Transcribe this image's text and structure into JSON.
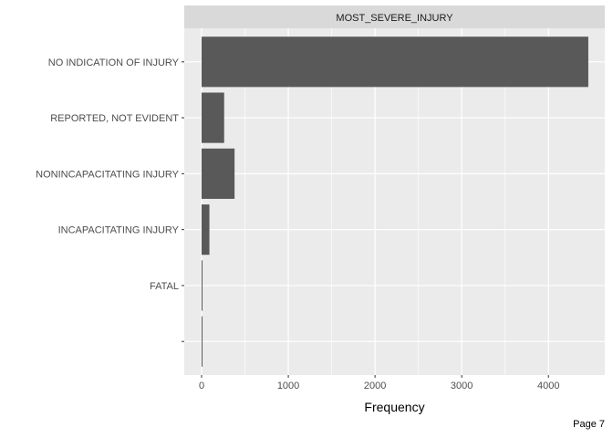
{
  "chart_data": {
    "type": "bar",
    "orientation": "horizontal",
    "facet_label": "MOST_SEVERE_INJURY",
    "categories": [
      "NO INDICATION OF INJURY",
      "REPORTED, NOT EVIDENT",
      "NONINCAPACITATING INJURY",
      "INCAPACITATING INJURY",
      "FATAL",
      ""
    ],
    "values": [
      4460,
      260,
      380,
      90,
      8,
      5
    ],
    "xlabel": "Frequency",
    "ylabel": "",
    "xlim": [
      -200,
      4650
    ],
    "xticks": [
      0,
      1000,
      2000,
      3000,
      4000
    ],
    "xtick_labels": [
      "0",
      "1000",
      "2000",
      "3000",
      "4000"
    ],
    "grid": true,
    "legend": "none",
    "colors": {
      "bar": "#595959",
      "panel_background": "#ebebeb",
      "strip_background": "#d9d9d9",
      "grid_major": "#ffffff"
    }
  },
  "footer": {
    "page_label": "Page 7"
  }
}
